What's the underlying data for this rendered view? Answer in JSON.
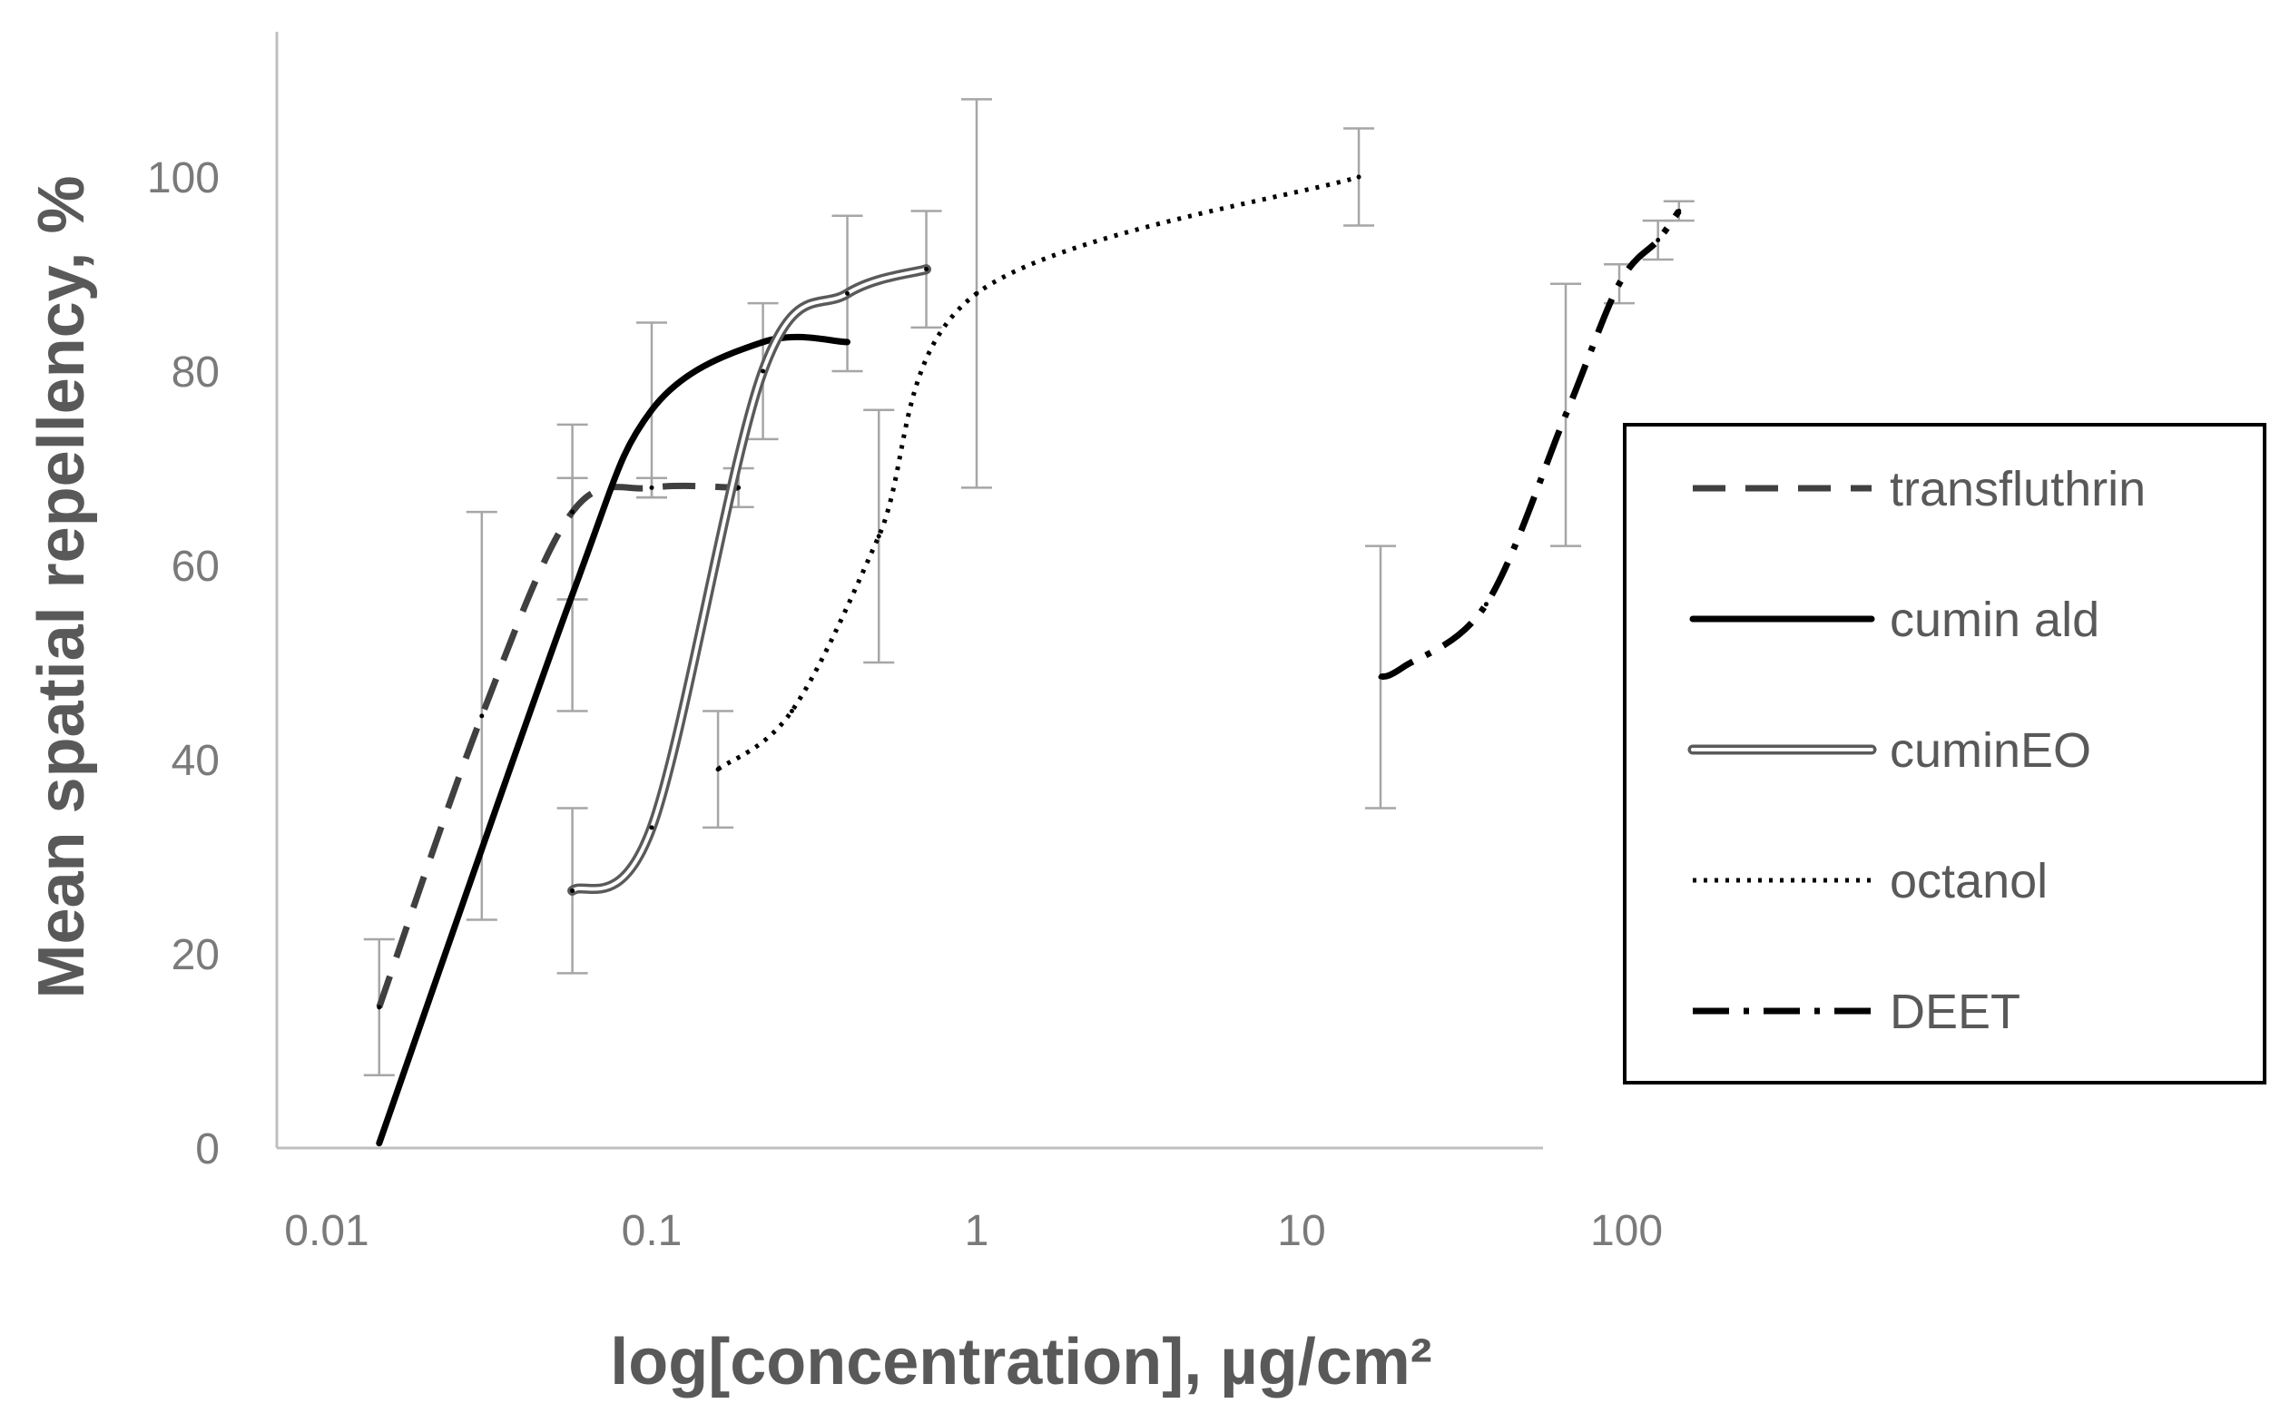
{
  "chart_data": {
    "type": "line",
    "title": "",
    "xlabel": "log[concentration], µg/cm²",
    "ylabel": "Mean spatial repellency, %",
    "x_scale": "log",
    "xlim": [
      0.01,
      100
    ],
    "ylim": [
      0,
      115
    ],
    "x_ticks": [
      {
        "value": 0.01,
        "label": "0.01"
      },
      {
        "value": 0.1,
        "label": "0.1"
      },
      {
        "value": 1,
        "label": "1"
      },
      {
        "value": 10,
        "label": "10"
      },
      {
        "value": 100,
        "label": "100"
      }
    ],
    "y_ticks": [
      {
        "value": 0,
        "label": "0"
      },
      {
        "value": 20,
        "label": "20"
      },
      {
        "value": 40,
        "label": "40"
      },
      {
        "value": 60,
        "label": "60"
      },
      {
        "value": 80,
        "label": "80"
      },
      {
        "value": 100,
        "label": "100"
      }
    ],
    "grid": false,
    "legend_position": "right",
    "series": [
      {
        "name": "transfluthrin",
        "style": "dashed",
        "color": "#404040",
        "points": [
          {
            "x": 0.0145,
            "y": 14.5,
            "err": 7
          },
          {
            "x": 0.03,
            "y": 44.5,
            "err": 21
          },
          {
            "x": 0.057,
            "y": 65.5,
            "err": 9
          },
          {
            "x": 0.1,
            "y": 68,
            "err": 1
          },
          {
            "x": 0.185,
            "y": 68,
            "err": 2
          }
        ]
      },
      {
        "name": "cumin ald",
        "style": "solid",
        "color": "#000000",
        "points": [
          {
            "x": 0.0145,
            "y": 0.5,
            "err": 0
          },
          {
            "x": 0.057,
            "y": 57,
            "err": 12
          },
          {
            "x": 0.1,
            "y": 76,
            "err": 9
          },
          {
            "x": 0.22,
            "y": 83,
            "err": 0
          },
          {
            "x": 0.4,
            "y": 83,
            "err": 0
          }
        ]
      },
      {
        "name": "cuminEO",
        "style": "double",
        "color": "#7f7f7f",
        "points": [
          {
            "x": 0.057,
            "y": 26.5,
            "err": 8.5
          },
          {
            "x": 0.1,
            "y": 33,
            "err": 0
          },
          {
            "x": 0.22,
            "y": 80,
            "err": 7
          },
          {
            "x": 0.4,
            "y": 88,
            "err": 8
          },
          {
            "x": 0.7,
            "y": 90.5,
            "err": 6
          }
        ]
      },
      {
        "name": "octanol",
        "style": "dotted",
        "color": "#000000",
        "points": [
          {
            "x": 0.16,
            "y": 39,
            "err": 6
          },
          {
            "x": 0.27,
            "y": 45,
            "err": 0
          },
          {
            "x": 0.5,
            "y": 63,
            "err": 13
          },
          {
            "x": 1.0,
            "y": 88,
            "err": 20
          },
          {
            "x": 15.0,
            "y": 100,
            "err": 5
          }
        ]
      },
      {
        "name": "DEET",
        "style": "dashdot",
        "color": "#000000",
        "points": [
          {
            "x": 17.5,
            "y": 48.5,
            "err": 13.5
          },
          {
            "x": 20.5,
            "y": 49.5,
            "err": 0
          },
          {
            "x": 37.0,
            "y": 56,
            "err": 0
          },
          {
            "x": 65.0,
            "y": 75.5,
            "err": 13.5
          },
          {
            "x": 95.0,
            "y": 89,
            "err": 2
          },
          {
            "x": 125.0,
            "y": 93.5,
            "err": 2
          },
          {
            "x": 145.0,
            "y": 96.5,
            "err": 1
          }
        ]
      }
    ]
  }
}
